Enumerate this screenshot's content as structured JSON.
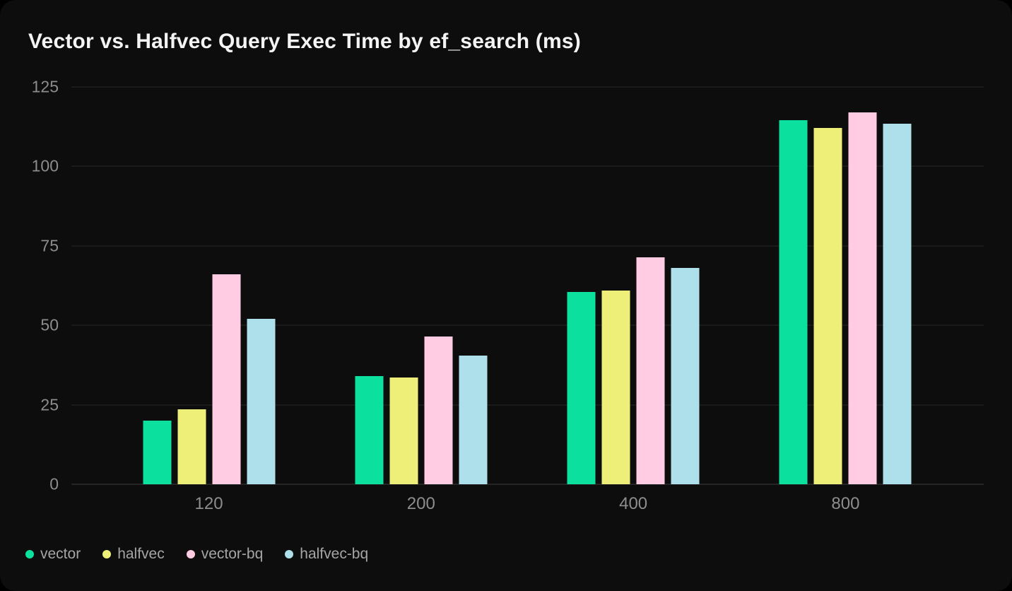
{
  "title": "Vector vs. Halfvec Query Exec Time by ef_search (ms)",
  "chart_data": {
    "type": "bar",
    "title": "Vector vs. Halfvec Query Exec Time by ef_search (ms)",
    "xlabel": "",
    "ylabel": "",
    "categories": [
      "120",
      "200",
      "400",
      "800"
    ],
    "series": [
      {
        "name": "vector",
        "color": "#0ce09e",
        "values": [
          20,
          34,
          60.5,
          114.5
        ]
      },
      {
        "name": "halfvec",
        "color": "#edef78",
        "values": [
          23.5,
          33.5,
          61,
          112
        ]
      },
      {
        "name": "vector-bq",
        "color": "#ffcce3",
        "values": [
          66,
          46.5,
          71.5,
          117
        ]
      },
      {
        "name": "halfvec-bq",
        "color": "#aee0eb",
        "values": [
          52,
          40.5,
          68,
          113.5
        ]
      }
    ],
    "ylim": [
      0,
      125
    ],
    "yticks": [
      0,
      25,
      50,
      75,
      100,
      125
    ],
    "grid": "horizontal",
    "legend_position": "bottom-left",
    "background_color": "#0d0d0d",
    "text_color": "#8d8d8d"
  }
}
